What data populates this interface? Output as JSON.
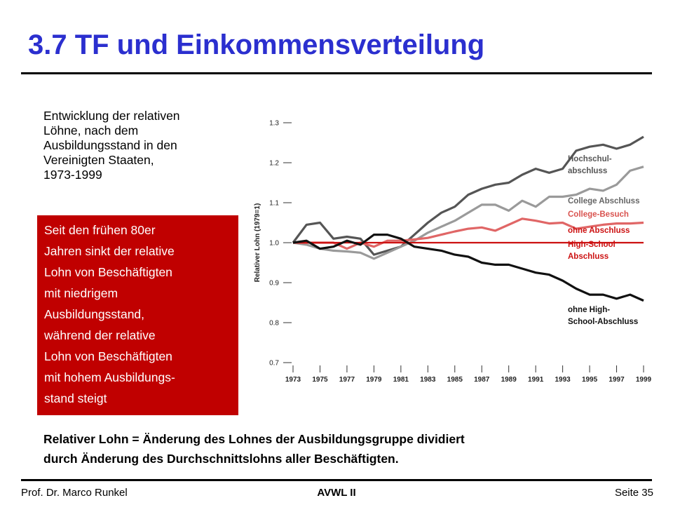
{
  "slide": {
    "title": "3.7 TF und Einkommensverteilung",
    "description_lines": [
      "Entwicklung der relativen",
      "Löhne, nach dem",
      "Ausbildungsstand in den",
      "Vereinigten Staaten,",
      "1973-1999"
    ],
    "callout_lines": [
      "Seit den frühen 80er",
      "Jahren sinkt der relative",
      "Lohn von Beschäftigten",
      "mit niedrigem",
      "Ausbildungsstand,",
      "während der relative",
      "Lohn von Beschäftigten",
      "mit hohem Ausbildungs-",
      "stand steigt"
    ],
    "note_lines": [
      "Relativer Lohn = Änderung des Lohnes der Ausbildungsgruppe dividiert",
      "durch Änderung des Durchschnittslohns aller Beschäftigten."
    ],
    "footer": {
      "author": "Prof. Dr. Marco Runkel",
      "course": "AVWL II",
      "page": "Seite 35"
    }
  },
  "colors": {
    "title": "#2b2fcf",
    "callout_bg": "#c00000",
    "dark": "#555555",
    "mid": "#9a9a9a",
    "red_light": "#e06666",
    "red": "#cc1111",
    "black": "#111111"
  },
  "chart_data": {
    "type": "line",
    "ylabel": "Relativer Lohn (1979=1)",
    "xlabel": "",
    "ylim": [
      0.7,
      1.3
    ],
    "yticks": [
      "0.7",
      "0.8",
      "0.9",
      "1.0",
      "1.1",
      "1.2",
      "1.3"
    ],
    "xticks": [
      "1973",
      "1975",
      "1977",
      "1979",
      "1981",
      "1983",
      "1985",
      "1987",
      "1989",
      "1991",
      "1993",
      "1995",
      "1997",
      "1999"
    ],
    "x": [
      1973,
      1974,
      1975,
      1976,
      1977,
      1978,
      1979,
      1980,
      1981,
      1982,
      1983,
      1984,
      1985,
      1986,
      1987,
      1988,
      1989,
      1990,
      1991,
      1992,
      1993,
      1994,
      1995,
      1996,
      1997,
      1998,
      1999
    ],
    "series": [
      {
        "name": "Hochschul-abschluss",
        "label_lines": [
          "Hochschul-",
          "abschluss"
        ],
        "color": "#555555",
        "values": [
          1.0,
          1.045,
          1.05,
          1.01,
          1.015,
          1.01,
          0.97,
          0.98,
          0.99,
          1.02,
          1.05,
          1.075,
          1.09,
          1.12,
          1.135,
          1.145,
          1.15,
          1.17,
          1.185,
          1.175,
          1.185,
          1.23,
          1.24,
          1.245,
          1.235,
          1.245,
          1.265
        ]
      },
      {
        "name": "College Abschluss",
        "label_lines": [
          "College Abschluss"
        ],
        "color": "#9a9a9a",
        "values": [
          1.0,
          0.995,
          0.985,
          0.98,
          0.978,
          0.975,
          0.96,
          0.975,
          0.99,
          1.005,
          1.025,
          1.04,
          1.055,
          1.075,
          1.095,
          1.095,
          1.08,
          1.105,
          1.09,
          1.115,
          1.115,
          1.12,
          1.135,
          1.13,
          1.145,
          1.18,
          1.19
        ]
      },
      {
        "name": "College-Besuch",
        "label_lines": [
          "College-Besuch"
        ],
        "color": "#e06666",
        "values": [
          1.0,
          1.0,
          1.0,
          1.0,
          0.985,
          1.0,
          0.99,
          1.005,
          1.005,
          1.008,
          1.012,
          1.02,
          1.028,
          1.035,
          1.038,
          1.03,
          1.045,
          1.06,
          1.055,
          1.048,
          1.05,
          1.035,
          1.04,
          1.045,
          1.048,
          1.048,
          1.05
        ]
      },
      {
        "name": "High-School Abschluss",
        "label_lines": [
          "ohne Abschluss",
          "High-School",
          "Abschluss"
        ],
        "color": "#cc1111",
        "values": [
          1.0,
          1.0,
          1.0,
          1.0,
          1.0,
          1.0,
          1.0,
          1.0,
          1.0,
          1.0,
          1.0,
          1.0,
          1.0,
          1.0,
          1.0,
          1.0,
          1.0,
          1.0,
          1.0,
          1.0,
          1.0,
          1.0,
          1.0,
          1.0,
          1.0,
          1.0,
          1.0
        ]
      },
      {
        "name": "ohne High-School-Abschluss",
        "label_lines": [
          "ohne High-",
          "School-Abschluss"
        ],
        "color": "#111111",
        "values": [
          1.0,
          1.005,
          0.985,
          0.99,
          1.005,
          0.995,
          1.02,
          1.02,
          1.01,
          0.99,
          0.985,
          0.98,
          0.97,
          0.965,
          0.95,
          0.945,
          0.945,
          0.935,
          0.925,
          0.92,
          0.905,
          0.885,
          0.87,
          0.87,
          0.86,
          0.87,
          0.855
        ]
      }
    ]
  }
}
